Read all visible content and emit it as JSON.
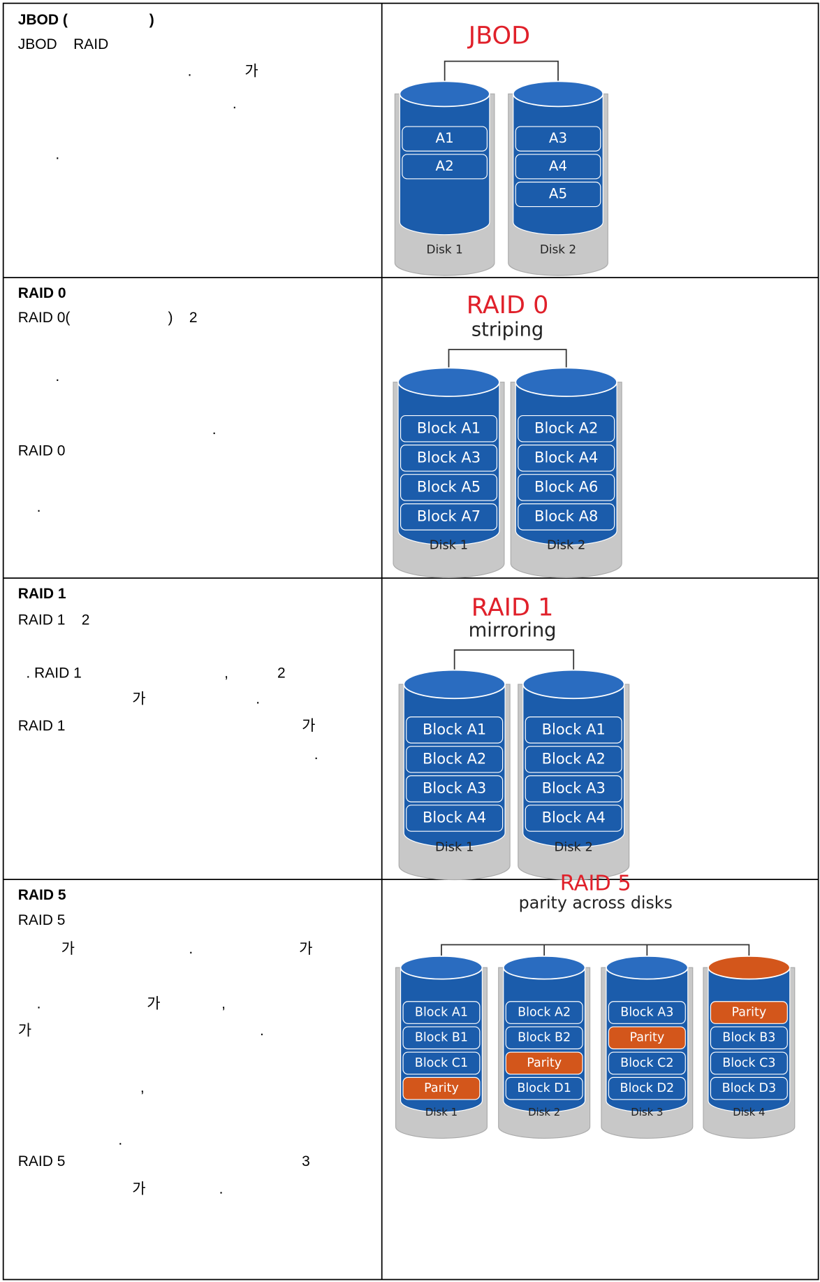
{
  "rows": [
    {
      "lines": [
        {
          "text": "JBOD (                    )",
          "bold": true
        },
        {
          "text": "JBOD    RAID"
        },
        {
          "text": ".             가"
        },
        {
          "text": "."
        },
        {
          "text": "."
        }
      ],
      "diagram": {
        "title": "JBOD",
        "disks": [
          {
            "label": "Disk 1",
            "blocks": [
              {
                "text": "A1",
                "color": "#1b5cab"
              },
              {
                "text": "A2",
                "color": "#1b5cab"
              }
            ]
          },
          {
            "label": "Disk 2",
            "blocks": [
              {
                "text": "A3",
                "color": "#1b5cab"
              },
              {
                "text": "A4",
                "color": "#1b5cab"
              },
              {
                "text": "A5",
                "color": "#1b5cab"
              }
            ]
          }
        ]
      }
    },
    {
      "lines": [
        {
          "text": "RAID 0",
          "bold": true
        },
        {
          "text": "RAID 0(                        )    2"
        },
        {
          "text": "."
        },
        {
          "text": "."
        },
        {
          "text": "RAID 0"
        },
        {
          "text": "."
        }
      ],
      "diagram": {
        "title": "RAID 0",
        "subtitle": "striping",
        "disks": [
          {
            "label": "Disk 1",
            "blocks": [
              {
                "text": "Block A1",
                "color": "#1b5cab"
              },
              {
                "text": "Block A3",
                "color": "#1b5cab"
              },
              {
                "text": "Block A5",
                "color": "#1b5cab"
              },
              {
                "text": "Block A7",
                "color": "#1b5cab"
              }
            ]
          },
          {
            "label": "Disk 2",
            "blocks": [
              {
                "text": "Block A2",
                "color": "#1b5cab"
              },
              {
                "text": "Block A4",
                "color": "#1b5cab"
              },
              {
                "text": "Block A6",
                "color": "#1b5cab"
              },
              {
                "text": "Block A8",
                "color": "#1b5cab"
              }
            ]
          }
        ]
      }
    },
    {
      "lines": [
        {
          "text": "RAID 1",
          "bold": true
        },
        {
          "text": "RAID 1    2"
        },
        {
          "text": ". RAID 1                                   ,            2"
        },
        {
          "text": "가                           ."
        },
        {
          "text": "RAID 1                                                          가"
        },
        {
          "text": "."
        }
      ],
      "diagram": {
        "title": "RAID 1",
        "subtitle": "mirroring",
        "disks": [
          {
            "label": "Disk 1",
            "blocks": [
              {
                "text": "Block A1",
                "color": "#1b5cab"
              },
              {
                "text": "Block A2",
                "color": "#1b5cab"
              },
              {
                "text": "Block A3",
                "color": "#1b5cab"
              },
              {
                "text": "Block A4",
                "color": "#1b5cab"
              }
            ]
          },
          {
            "label": "Disk 2",
            "blocks": [
              {
                "text": "Block A1",
                "color": "#1b5cab"
              },
              {
                "text": "Block A2",
                "color": "#1b5cab"
              },
              {
                "text": "Block A3",
                "color": "#1b5cab"
              },
              {
                "text": "Block A4",
                "color": "#1b5cab"
              }
            ]
          }
        ]
      }
    },
    {
      "lines": [
        {
          "text": "RAID 5",
          "bold": true
        },
        {
          "text": "RAID 5"
        },
        {
          "text": "가                            .                          가"
        },
        {
          "text": ".                          가               ,"
        },
        {
          "text": "가                                                        ."
        },
        {
          "text": ","
        },
        {
          "text": "."
        },
        {
          "text": "RAID 5                                                          3"
        },
        {
          "text": "가                  ."
        }
      ],
      "diagram": {
        "title": "RAID 5",
        "subtitle": "parity across disks",
        "disks": [
          {
            "label": "Disk 1",
            "blocks": [
              {
                "text": "Block A1",
                "color": "#1b5cab"
              },
              {
                "text": "Block B1",
                "color": "#1b5cab"
              },
              {
                "text": "Block C1",
                "color": "#1b5cab"
              },
              {
                "text": "Parity",
                "color": "#d3561b"
              }
            ]
          },
          {
            "label": "Disk 2",
            "blocks": [
              {
                "text": "Block A2",
                "color": "#1b5cab"
              },
              {
                "text": "Block B2",
                "color": "#1b5cab"
              },
              {
                "text": "Parity",
                "color": "#d3561b"
              },
              {
                "text": "Block D1",
                "color": "#1b5cab"
              }
            ]
          },
          {
            "label": "Disk 3",
            "blocks": [
              {
                "text": "Block A3",
                "color": "#1b5cab"
              },
              {
                "text": "Parity",
                "color": "#d3561b"
              },
              {
                "text": "Block C2",
                "color": "#1b5cab"
              },
              {
                "text": "Block D2",
                "color": "#1b5cab"
              }
            ]
          },
          {
            "label": "Disk 4",
            "blocks": [
              {
                "text": "Parity",
                "color": "#d3561b"
              },
              {
                "text": "Block B3",
                "color": "#1b5cab"
              },
              {
                "text": "Block C3",
                "color": "#1b5cab"
              },
              {
                "text": "Block D3",
                "color": "#1b5cab"
              }
            ]
          }
        ]
      }
    }
  ]
}
